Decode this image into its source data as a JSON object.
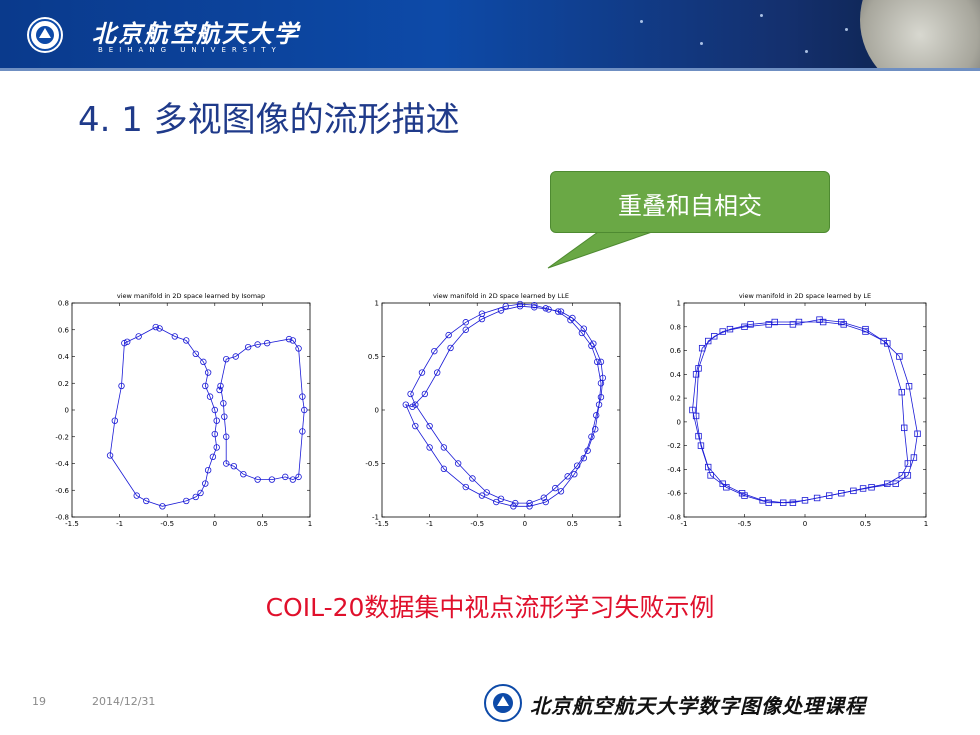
{
  "header": {
    "university_cn": "北京航空航天大学",
    "university_en": "BEIHANG UNIVERSITY"
  },
  "slide": {
    "title": "4. 1  多视图像的流形描述",
    "callout": "重叠和自相交",
    "caption": "COIL-20数据集中视点流形学习失败示例",
    "page_number": "19",
    "date": "2014/12/31",
    "footer_course": "北京航空航天大学数字图像处理课程"
  },
  "colors": {
    "series": "#1a1ad6",
    "title": "#1f3a8a",
    "callout": "#6aa845",
    "caption": "#e0102c"
  },
  "chart_data": [
    {
      "type": "line",
      "title": "view manifold in 2D space learned by Isomap",
      "marker": "circle",
      "xlim": [
        -1.5,
        1
      ],
      "ylim": [
        -0.8,
        0.8
      ],
      "xticks": [
        -1.5,
        -1,
        -0.5,
        0,
        0.5,
        1
      ],
      "yticks": [
        -0.8,
        -0.6,
        -0.4,
        -0.2,
        0,
        0.2,
        0.4,
        0.6,
        0.8
      ],
      "xticklabels": [
        "-1.5",
        "-1",
        "-0.5",
        "0",
        "0.5",
        "1"
      ],
      "yticklabels": [
        "-0.8",
        "-0.6",
        "-0.4",
        "-0.2",
        "0",
        "0.2",
        "0.4",
        "0.6",
        "0.8"
      ],
      "closed": true,
      "points": [
        [
          -0.62,
          0.62
        ],
        [
          -0.58,
          0.61
        ],
        [
          -0.42,
          0.55
        ],
        [
          -0.3,
          0.52
        ],
        [
          -0.2,
          0.42
        ],
        [
          -0.12,
          0.36
        ],
        [
          -0.07,
          0.28
        ],
        [
          -0.1,
          0.18
        ],
        [
          -0.05,
          0.1
        ],
        [
          0,
          0
        ],
        [
          0.02,
          -0.08
        ],
        [
          0.0,
          -0.18
        ],
        [
          0.02,
          -0.28
        ],
        [
          -0.02,
          -0.35
        ],
        [
          -0.07,
          -0.45
        ],
        [
          -0.1,
          -0.55
        ],
        [
          -0.15,
          -0.62
        ],
        [
          -0.2,
          -0.65
        ],
        [
          -0.3,
          -0.68
        ],
        [
          -0.55,
          -0.72
        ],
        [
          -0.72,
          -0.68
        ],
        [
          -0.82,
          -0.64
        ],
        [
          -1.1,
          -0.34
        ],
        [
          -1.05,
          -0.08
        ],
        [
          -0.98,
          0.18
        ],
        [
          -0.95,
          0.5
        ],
        [
          -0.92,
          0.51
        ],
        [
          -0.8,
          0.55
        ]
      ],
      "points2": [
        [
          0.05,
          0.15
        ],
        [
          0.12,
          0.38
        ],
        [
          0.22,
          0.4
        ],
        [
          0.35,
          0.47
        ],
        [
          0.45,
          0.49
        ],
        [
          0.55,
          0.5
        ],
        [
          0.78,
          0.53
        ],
        [
          0.82,
          0.52
        ],
        [
          0.88,
          0.46
        ],
        [
          0.92,
          0.1
        ],
        [
          0.94,
          0.0
        ],
        [
          0.92,
          -0.16
        ],
        [
          0.88,
          -0.5
        ],
        [
          0.82,
          -0.52
        ],
        [
          0.74,
          -0.5
        ],
        [
          0.6,
          -0.52
        ],
        [
          0.45,
          -0.52
        ],
        [
          0.3,
          -0.48
        ],
        [
          0.2,
          -0.42
        ],
        [
          0.12,
          -0.4
        ],
        [
          0.12,
          -0.2
        ],
        [
          0.1,
          -0.05
        ],
        [
          0.09,
          0.05
        ],
        [
          0.06,
          0.18
        ]
      ]
    },
    {
      "type": "line",
      "title": "view manifold in 2D space learned by LLE",
      "marker": "circle",
      "xlim": [
        -1.5,
        1
      ],
      "ylim": [
        -1,
        1
      ],
      "xticks": [
        -1.5,
        -1,
        -0.5,
        0,
        0.5,
        1
      ],
      "yticks": [
        -1,
        -0.5,
        0,
        0.5,
        1
      ],
      "xticklabels": [
        "-1.5",
        "-1",
        "-0.5",
        "0",
        "0.5",
        "1"
      ],
      "yticklabels": [
        "-1",
        "-0.5",
        "0",
        "0.5",
        "1"
      ],
      "closed": true,
      "points": [
        [
          -0.2,
          0.97
        ],
        [
          -0.05,
          0.99
        ],
        [
          0.1,
          0.98
        ],
        [
          0.22,
          0.95
        ],
        [
          0.35,
          0.92
        ],
        [
          0.48,
          0.84
        ],
        [
          0.6,
          0.72
        ],
        [
          0.7,
          0.6
        ],
        [
          0.76,
          0.45
        ],
        [
          0.8,
          0.25
        ],
        [
          0.78,
          0.05
        ],
        [
          0.74,
          -0.18
        ],
        [
          0.66,
          -0.38
        ],
        [
          0.55,
          -0.52
        ],
        [
          0.45,
          -0.62
        ],
        [
          0.32,
          -0.73
        ],
        [
          0.2,
          -0.82
        ],
        [
          0.05,
          -0.87
        ],
        [
          -0.1,
          -0.87
        ],
        [
          -0.25,
          -0.83
        ],
        [
          -0.4,
          -0.77
        ],
        [
          -0.55,
          -0.64
        ],
        [
          -0.7,
          -0.5
        ],
        [
          -0.85,
          -0.35
        ],
        [
          -1.0,
          -0.15
        ],
        [
          -1.15,
          0.05
        ],
        [
          -1.2,
          0.15
        ],
        [
          -1.08,
          0.35
        ],
        [
          -0.95,
          0.55
        ],
        [
          -0.8,
          0.7
        ],
        [
          -0.62,
          0.82
        ],
        [
          -0.45,
          0.9
        ]
      ],
      "points2": [
        [
          0.82,
          0.3
        ],
        [
          0.8,
          0.45
        ],
        [
          0.72,
          0.62
        ],
        [
          0.62,
          0.76
        ],
        [
          0.5,
          0.86
        ],
        [
          0.38,
          0.92
        ],
        [
          0.25,
          0.94
        ],
        [
          0.1,
          0.96
        ],
        [
          -0.05,
          0.97
        ],
        [
          -0.25,
          0.93
        ],
        [
          -0.45,
          0.85
        ],
        [
          -0.62,
          0.75
        ],
        [
          -0.78,
          0.58
        ],
        [
          -0.92,
          0.35
        ],
        [
          -1.05,
          0.15
        ],
        [
          -1.18,
          0.03
        ],
        [
          -1.25,
          0.05
        ],
        [
          -1.15,
          -0.15
        ],
        [
          -1.0,
          -0.35
        ],
        [
          -0.85,
          -0.55
        ],
        [
          -0.62,
          -0.72
        ],
        [
          -0.45,
          -0.8
        ],
        [
          -0.3,
          -0.86
        ],
        [
          -0.12,
          -0.9
        ],
        [
          0.05,
          -0.9
        ],
        [
          0.22,
          -0.86
        ],
        [
          0.38,
          -0.76
        ],
        [
          0.52,
          -0.6
        ],
        [
          0.62,
          -0.45
        ],
        [
          0.7,
          -0.25
        ],
        [
          0.75,
          -0.05
        ],
        [
          0.8,
          0.12
        ]
      ]
    },
    {
      "type": "line",
      "title": "view manifold in 2D space learned by LE",
      "marker": "square",
      "xlim": [
        -1,
        1
      ],
      "ylim": [
        -0.8,
        1
      ],
      "xticks": [
        -1,
        -0.5,
        0,
        0.5,
        1
      ],
      "yticks": [
        -0.8,
        -0.6,
        -0.4,
        -0.2,
        0,
        0.2,
        0.4,
        0.6,
        0.8,
        1
      ],
      "xticklabels": [
        "-1",
        "-0.5",
        "0",
        "0.5",
        "1"
      ],
      "yticklabels": [
        "-0.8",
        "-0.6",
        "-0.4",
        "-0.2",
        "0",
        "0.2",
        "0.4",
        "0.6",
        "0.8",
        "1"
      ],
      "closed": true,
      "points": [
        [
          -0.93,
          0.1
        ],
        [
          -0.9,
          0.4
        ],
        [
          -0.85,
          0.62
        ],
        [
          -0.75,
          0.72
        ],
        [
          -0.62,
          0.78
        ],
        [
          -0.45,
          0.82
        ],
        [
          -0.25,
          0.84
        ],
        [
          -0.05,
          0.84
        ],
        [
          0.15,
          0.84
        ],
        [
          0.32,
          0.82
        ],
        [
          0.5,
          0.76
        ],
        [
          0.65,
          0.68
        ],
        [
          0.78,
          0.55
        ],
        [
          0.86,
          0.3
        ],
        [
          0.93,
          -0.1
        ],
        [
          0.9,
          -0.3
        ],
        [
          0.85,
          -0.45
        ],
        [
          0.75,
          -0.52
        ],
        [
          0.55,
          -0.55
        ],
        [
          0.4,
          -0.58
        ],
        [
          0.2,
          -0.62
        ],
        [
          0.0,
          -0.66
        ],
        [
          -0.18,
          -0.68
        ],
        [
          -0.35,
          -0.66
        ],
        [
          -0.52,
          -0.6
        ],
        [
          -0.68,
          -0.52
        ],
        [
          -0.8,
          -0.38
        ],
        [
          -0.88,
          -0.12
        ]
      ],
      "points2": [
        [
          -0.88,
          0.45
        ],
        [
          -0.8,
          0.68
        ],
        [
          -0.68,
          0.76
        ],
        [
          -0.5,
          0.8
        ],
        [
          -0.3,
          0.82
        ],
        [
          -0.1,
          0.82
        ],
        [
          0.12,
          0.86
        ],
        [
          0.3,
          0.84
        ],
        [
          0.5,
          0.78
        ],
        [
          0.68,
          0.66
        ],
        [
          0.8,
          0.25
        ],
        [
          0.82,
          -0.05
        ],
        [
          0.85,
          -0.35
        ],
        [
          0.8,
          -0.45
        ],
        [
          0.68,
          -0.52
        ],
        [
          0.48,
          -0.56
        ],
        [
          0.3,
          -0.6
        ],
        [
          0.1,
          -0.64
        ],
        [
          -0.1,
          -0.68
        ],
        [
          -0.3,
          -0.68
        ],
        [
          -0.5,
          -0.62
        ],
        [
          -0.65,
          -0.55
        ],
        [
          -0.78,
          -0.45
        ],
        [
          -0.86,
          -0.2
        ],
        [
          -0.9,
          0.05
        ]
      ]
    }
  ]
}
